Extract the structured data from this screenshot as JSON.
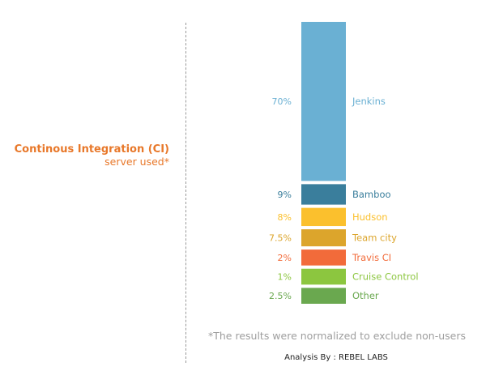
{
  "title": {
    "main": "Continous Integration (CI)",
    "sub": "server used*"
  },
  "footnote": "*The results were normalized to exclude non-users",
  "credit": "Analysis By : REBEL LABS",
  "chart_data": {
    "type": "bar",
    "stacked": true,
    "orientation": "vertical",
    "unit": "%",
    "categories": [
      "Jenkins",
      "Bamboo",
      "Hudson",
      "Team city",
      "Travis CI",
      "Cruise Control",
      "Other"
    ],
    "values": [
      70,
      9,
      8,
      7.5,
      2,
      1,
      2.5
    ],
    "value_labels": [
      "70%",
      "9%",
      "8%",
      "7.5%",
      "2%",
      "1%",
      "2.5%"
    ],
    "colors": [
      "#6ab0d3",
      "#3a7e9c",
      "#fbc02d",
      "#dca52c",
      "#f26b3a",
      "#8cc63f",
      "#6aa84f"
    ],
    "legend": "right of bars"
  }
}
